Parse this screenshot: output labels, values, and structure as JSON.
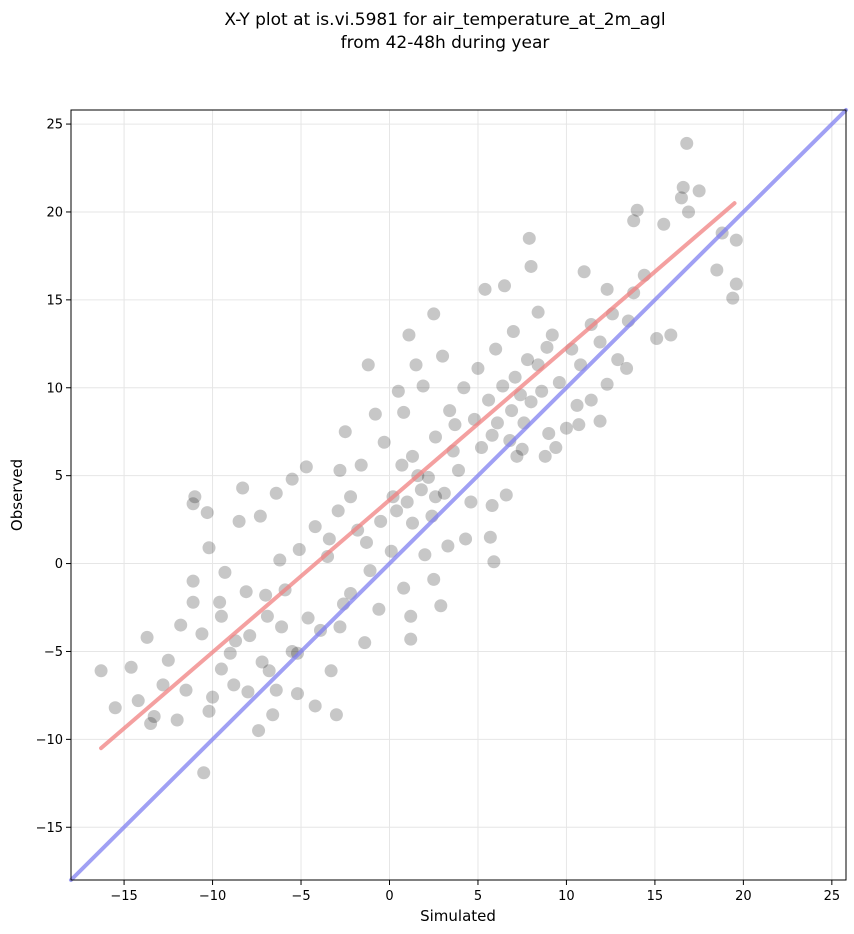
{
  "chart_data": {
    "type": "scatter",
    "title": [
      "X-Y plot at is.vi.5981 for air_temperature_at_2m_agl",
      "from 42-48h during year"
    ],
    "xlabel": "Simulated",
    "ylabel": "Observed",
    "xlim": [
      -18.0,
      25.8
    ],
    "ylim": [
      -18.0,
      25.8
    ],
    "xticks": [
      -15,
      -10,
      -5,
      0,
      5,
      10,
      15,
      20,
      25
    ],
    "yticks": [
      -15,
      -10,
      -5,
      0,
      5,
      10,
      15,
      20,
      25
    ],
    "tick_labels": [
      "−15",
      "−10",
      "−5",
      "0",
      "5",
      "10",
      "15",
      "20",
      "25"
    ],
    "grid": true,
    "point_color": "#000000",
    "point_alpha": 0.07,
    "series": [
      {
        "kind": "points",
        "values": [
          [
            16.8,
            23.9
          ],
          [
            16.6,
            21.4
          ],
          [
            17.5,
            21.2
          ],
          [
            16.5,
            20.8
          ],
          [
            16.9,
            20.0
          ],
          [
            14.0,
            20.1
          ],
          [
            13.8,
            19.5
          ],
          [
            15.5,
            19.3
          ],
          [
            19.6,
            18.4
          ],
          [
            18.8,
            18.8
          ],
          [
            19.4,
            15.1
          ],
          [
            19.6,
            15.9
          ],
          [
            18.5,
            16.7
          ],
          [
            15.9,
            13.0
          ],
          [
            13.5,
            13.8
          ],
          [
            7.9,
            18.5
          ],
          [
            8.0,
            16.9
          ],
          [
            6.5,
            15.8
          ],
          [
            5.4,
            15.6
          ],
          [
            2.5,
            14.2
          ],
          [
            1.5,
            11.3
          ],
          [
            -1.2,
            11.3
          ],
          [
            1.1,
            13.0
          ],
          [
            12.3,
            15.6
          ],
          [
            11.0,
            16.6
          ],
          [
            11.9,
            8.1
          ],
          [
            10.7,
            7.9
          ],
          [
            9.4,
            6.6
          ],
          [
            7.2,
            6.1
          ],
          [
            5.8,
            3.3
          ],
          [
            7.5,
            6.5
          ],
          [
            5.7,
            1.5
          ],
          [
            5.9,
            0.1
          ],
          [
            3.3,
            1.0
          ],
          [
            2.5,
            -0.9
          ],
          [
            2.9,
            -2.4
          ],
          [
            1.2,
            -3.0
          ],
          [
            1.2,
            -4.3
          ],
          [
            -2.8,
            -3.6
          ],
          [
            -3.3,
            -6.1
          ],
          [
            -4.2,
            -8.1
          ],
          [
            -3.0,
            -8.6
          ],
          [
            -5.2,
            -7.4
          ],
          [
            -6.4,
            -7.2
          ],
          [
            -7.4,
            -9.5
          ],
          [
            -6.6,
            -8.6
          ],
          [
            -10.5,
            -11.9
          ],
          [
            -13.5,
            -9.1
          ],
          [
            -15.5,
            -8.2
          ],
          [
            -16.3,
            -6.1
          ],
          [
            -14.6,
            -5.9
          ],
          [
            -13.7,
            -4.2
          ],
          [
            -11.8,
            -3.5
          ],
          [
            -11.1,
            -2.2
          ],
          [
            -11.1,
            -1.0
          ],
          [
            -11.1,
            3.4
          ],
          [
            -11.0,
            3.8
          ],
          [
            -10.3,
            2.9
          ],
          [
            -10.2,
            0.9
          ],
          [
            -9.3,
            -0.5
          ],
          [
            -8.5,
            2.4
          ],
          [
            -8.3,
            4.3
          ],
          [
            -7.3,
            2.7
          ],
          [
            -6.4,
            4.0
          ],
          [
            -5.5,
            4.8
          ],
          [
            -4.7,
            5.5
          ],
          [
            -2.8,
            5.3
          ],
          [
            -2.5,
            7.5
          ],
          [
            -0.8,
            8.5
          ],
          [
            0.5,
            9.8
          ],
          [
            -3.5,
            0.4
          ],
          [
            -2.9,
            3.0
          ],
          [
            -7.0,
            -1.8
          ],
          [
            -8.7,
            -4.4
          ],
          [
            -9.5,
            -3.0
          ],
          [
            -12.5,
            -5.5
          ],
          [
            -11.5,
            -7.2
          ],
          [
            -9.5,
            -6.0
          ],
          [
            -7.2,
            -5.6
          ],
          [
            -5.2,
            -5.1
          ],
          [
            -4.6,
            -3.1
          ],
          [
            -2.2,
            -1.7
          ],
          [
            -1.3,
            1.2
          ],
          [
            0.2,
            3.8
          ],
          [
            1.6,
            5.0
          ],
          [
            2.6,
            7.2
          ],
          [
            3.4,
            8.7
          ],
          [
            4.2,
            10.0
          ],
          [
            5.0,
            11.1
          ],
          [
            6.0,
            12.2
          ],
          [
            7.0,
            13.2
          ],
          [
            8.4,
            14.3
          ],
          [
            9.2,
            13.0
          ],
          [
            8.4,
            11.3
          ],
          [
            7.4,
            9.6
          ],
          [
            6.1,
            8.0
          ],
          [
            5.2,
            6.6
          ],
          [
            3.9,
            5.3
          ],
          [
            2.6,
            3.8
          ],
          [
            1.3,
            2.3
          ],
          [
            0.1,
            0.7
          ],
          [
            -1.1,
            -0.4
          ],
          [
            -2.6,
            -2.3
          ],
          [
            -3.9,
            -3.8
          ],
          [
            -5.5,
            -5.0
          ],
          [
            -6.8,
            -6.1
          ],
          [
            -8.8,
            -6.9
          ],
          [
            -10.2,
            -8.4
          ],
          [
            10.3,
            12.2
          ],
          [
            11.4,
            13.6
          ],
          [
            12.6,
            14.2
          ],
          [
            13.8,
            15.4
          ],
          [
            14.4,
            16.4
          ],
          [
            15.1,
            12.8
          ],
          [
            13.4,
            11.1
          ],
          [
            12.3,
            10.2
          ],
          [
            10.6,
            9.0
          ],
          [
            9.0,
            7.4
          ],
          [
            8.0,
            9.2
          ],
          [
            3.0,
            11.8
          ],
          [
            1.9,
            10.1
          ],
          [
            0.8,
            8.6
          ],
          [
            -0.3,
            6.9
          ],
          [
            -1.6,
            5.6
          ],
          [
            -4.2,
            2.1
          ],
          [
            -6.2,
            0.2
          ],
          [
            -8.1,
            -1.6
          ],
          [
            -10.6,
            -4.0
          ],
          [
            -12.8,
            -6.9
          ],
          [
            -14.2,
            -7.8
          ],
          [
            -13.3,
            -8.7
          ],
          [
            -12.0,
            -8.9
          ],
          [
            -10.0,
            -7.6
          ],
          [
            -8.0,
            -7.3
          ],
          [
            4.6,
            3.5
          ],
          [
            4.3,
            1.4
          ],
          [
            2.0,
            0.5
          ],
          [
            0.8,
            -1.4
          ],
          [
            -0.6,
            -2.6
          ],
          [
            -1.4,
            -4.5
          ],
          [
            6.6,
            3.9
          ],
          [
            8.8,
            6.1
          ],
          [
            10.0,
            7.7
          ],
          [
            11.4,
            9.3
          ],
          [
            12.9,
            11.6
          ],
          [
            0.4,
            3.0
          ],
          [
            1.0,
            3.5
          ],
          [
            1.8,
            4.2
          ],
          [
            2.2,
            4.9
          ],
          [
            -0.5,
            2.4
          ],
          [
            0.7,
            5.6
          ],
          [
            1.3,
            6.1
          ],
          [
            3.6,
            6.4
          ],
          [
            3.1,
            4.0
          ],
          [
            2.4,
            2.7
          ],
          [
            -1.8,
            1.9
          ],
          [
            -2.2,
            3.8
          ],
          [
            -3.4,
            1.4
          ],
          [
            -5.1,
            0.8
          ],
          [
            -5.9,
            -1.5
          ],
          [
            -6.9,
            -3.0
          ],
          [
            -7.9,
            -4.1
          ],
          [
            -9.0,
            -5.1
          ],
          [
            -9.6,
            -2.2
          ],
          [
            -6.1,
            -3.6
          ],
          [
            5.6,
            9.3
          ],
          [
            6.4,
            10.1
          ],
          [
            7.1,
            10.6
          ],
          [
            7.8,
            11.6
          ],
          [
            8.9,
            12.3
          ],
          [
            6.9,
            8.7
          ],
          [
            5.8,
            7.3
          ],
          [
            4.8,
            8.2
          ],
          [
            3.7,
            7.9
          ],
          [
            9.6,
            10.3
          ],
          [
            10.8,
            11.3
          ],
          [
            11.9,
            12.6
          ],
          [
            8.6,
            9.8
          ],
          [
            7.6,
            8.0
          ],
          [
            6.8,
            7.0
          ]
        ]
      },
      {
        "kind": "fit-line",
        "color": "#f08080",
        "values": [
          [
            -16.3,
            -10.5
          ],
          [
            19.5,
            20.5
          ]
        ]
      },
      {
        "kind": "identity-line",
        "color": "#8080f0",
        "values": [
          [
            -18.0,
            -18.0
          ],
          [
            25.8,
            25.8
          ]
        ]
      }
    ]
  }
}
